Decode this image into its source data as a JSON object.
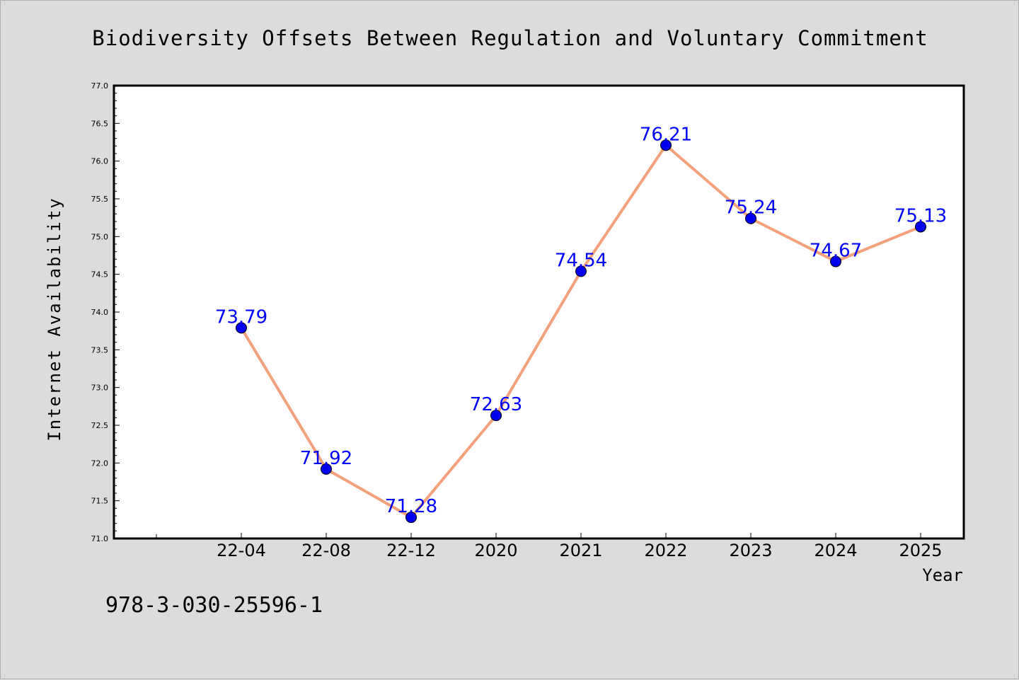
{
  "chart_data": {
    "type": "line",
    "title": "Biodiversity Offsets Between Regulation and Voluntary Commitment",
    "xlabel": "Year",
    "ylabel": "Internet Availability",
    "categories": [
      "22-04",
      "22-08",
      "22-12",
      "2020",
      "2021",
      "2022",
      "2023",
      "2024",
      "2025"
    ],
    "series": [
      {
        "values": [
          73.79,
          71.92,
          71.28,
          72.63,
          74.54,
          76.21,
          75.24,
          74.67,
          75.13
        ]
      }
    ],
    "data_labels": [
      "73.79",
      "71.92",
      "71.28",
      "72.63",
      "74.54",
      "76.21",
      "75.24",
      "74.67",
      "75.13"
    ],
    "y_ticks": [
      "71.0",
      "71.5",
      "72.0",
      "72.5",
      "73.0",
      "73.5",
      "74.0",
      "74.5",
      "75.0",
      "75.5",
      "76.0",
      "76.5",
      "77.0"
    ],
    "ylim": [
      71.0,
      77.0
    ],
    "grid": false,
    "legend": "none",
    "colors": {
      "line": "#f4a07a",
      "marker": "#0000ee",
      "label": "#0000ff",
      "frame": "#000000",
      "plot_bg": "#ffffff",
      "page_bg": "#dcdcdc"
    }
  },
  "footer_code": "978-3-030-25596-1"
}
